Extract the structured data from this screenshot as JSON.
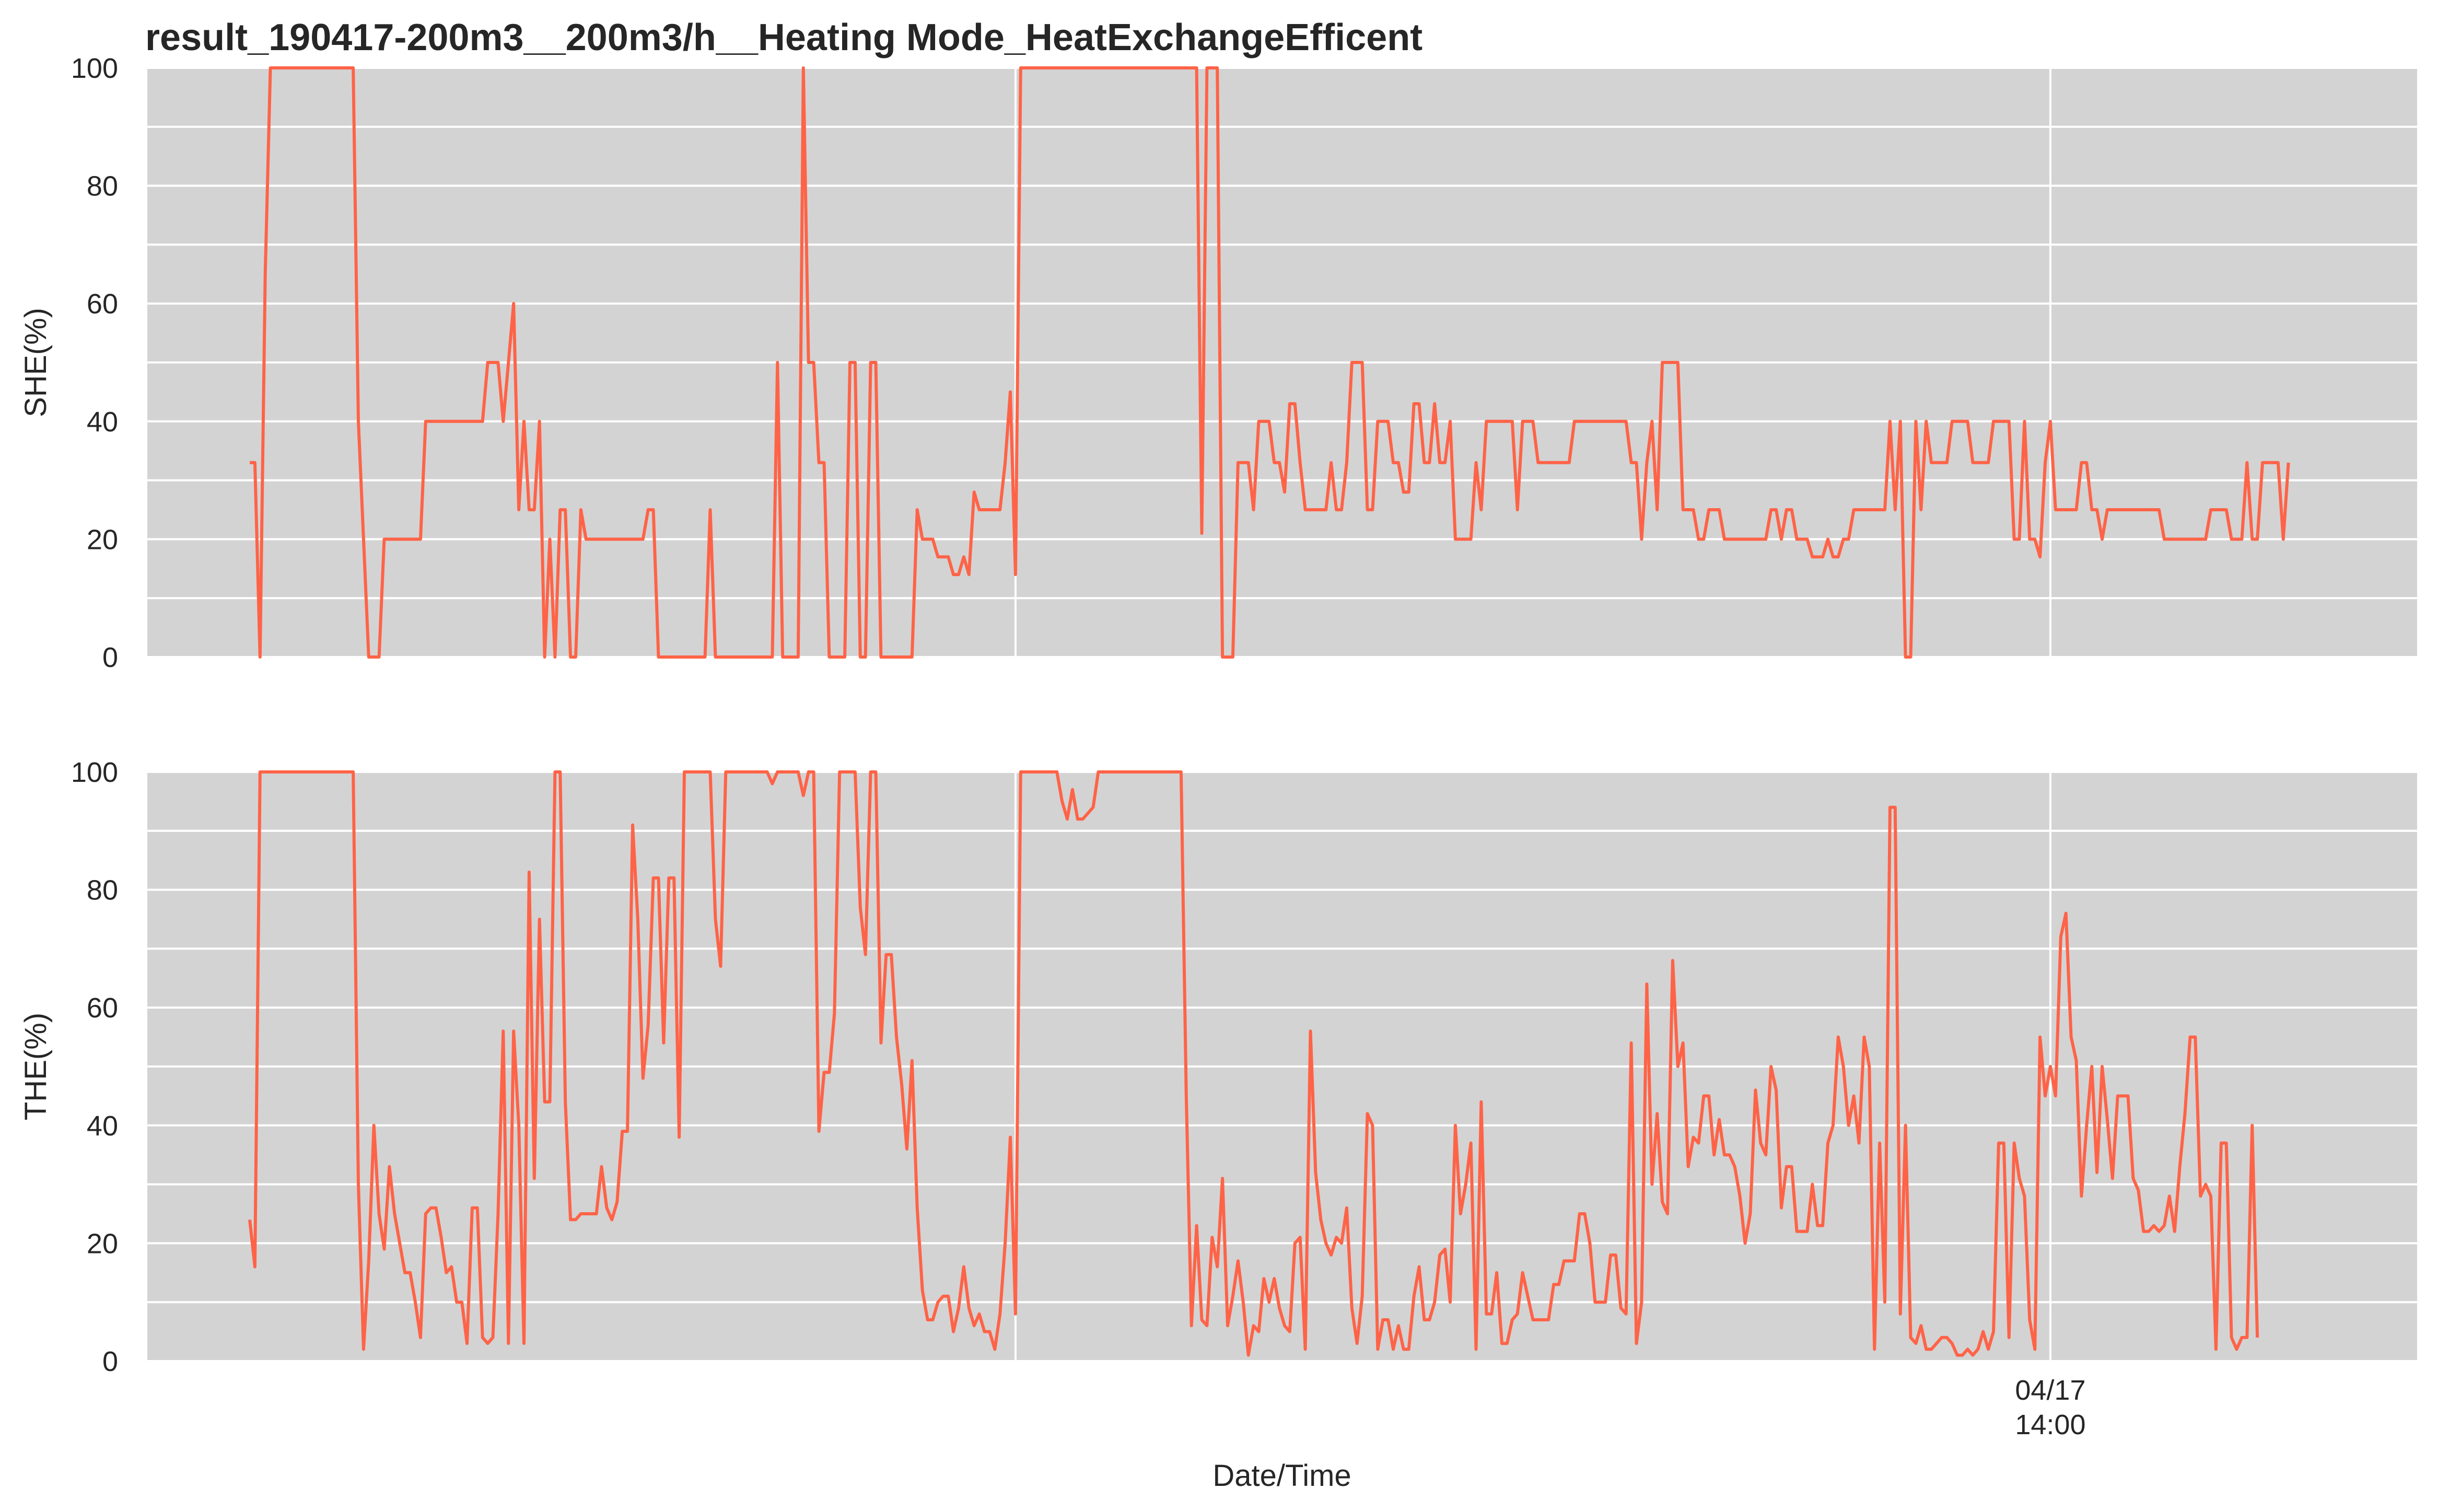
{
  "chart_data": [
    {
      "type": "line",
      "title": "result_190417-200m3__200m3/h__Heating Mode_HeatExchangeEfficent",
      "ylabel": "SHE(%)",
      "xlabel": "",
      "ylim": [
        0,
        100
      ],
      "yticks": [
        0,
        20,
        40,
        60,
        80,
        100
      ],
      "grid": true,
      "line_color": "#FF6347",
      "background": "#D3D3D3",
      "x_index_range": [
        0,
        400
      ],
      "series": [
        {
          "values": [
            33,
            33,
            0,
            65,
            100,
            100,
            100,
            100,
            100,
            100,
            100,
            100,
            100,
            100,
            100,
            100,
            100,
            100,
            100,
            100,
            100,
            40,
            20,
            0,
            0,
            0,
            20,
            20,
            20,
            20,
            20,
            20,
            20,
            20,
            40,
            40,
            40,
            40,
            40,
            40,
            40,
            40,
            40,
            40,
            40,
            40,
            50,
            50,
            50,
            40,
            50,
            60,
            25,
            40,
            25,
            25,
            40,
            0,
            20,
            0,
            25,
            25,
            0,
            0,
            25,
            20,
            20,
            20,
            20,
            20,
            20,
            20,
            20,
            20,
            20,
            20,
            20,
            25,
            25,
            0,
            0,
            0,
            0,
            0,
            0,
            0,
            0,
            0,
            0,
            25,
            0,
            0,
            0,
            0,
            0,
            0,
            0,
            0,
            0,
            0,
            0,
            0,
            50,
            0,
            0,
            0,
            0,
            100,
            50,
            50,
            33,
            33,
            0,
            0,
            0,
            0,
            50,
            50,
            0,
            0,
            50,
            50,
            0,
            0,
            0,
            0,
            0,
            0,
            0,
            25,
            20,
            20,
            20,
            17,
            17,
            17,
            14,
            14,
            17,
            14,
            28,
            25,
            25,
            25,
            25,
            25,
            33,
            45,
            14,
            100,
            100,
            100,
            100,
            100,
            100,
            100,
            100,
            100,
            100,
            100,
            100,
            100,
            100,
            100,
            100,
            100,
            100,
            100,
            100,
            100,
            100,
            100,
            100,
            100,
            100,
            100,
            100,
            100,
            100,
            100,
            100,
            100,
            100,
            100,
            21,
            100,
            100,
            100,
            0,
            0,
            0,
            33,
            33,
            33,
            25,
            40,
            40,
            40,
            33,
            33,
            28,
            43,
            43,
            33,
            25,
            25,
            25,
            25,
            25,
            33,
            25,
            25,
            33,
            50,
            50,
            50,
            25,
            25,
            40,
            40,
            40,
            33,
            33,
            28,
            28,
            43,
            43,
            33,
            33,
            43,
            33,
            33,
            40,
            20,
            20,
            20,
            20,
            33,
            25,
            40,
            40,
            40,
            40,
            40,
            40,
            25,
            40,
            40,
            40,
            33,
            33,
            33,
            33,
            33,
            33,
            33,
            40,
            40,
            40,
            40,
            40,
            40,
            40,
            40,
            40,
            40,
            40,
            33,
            33,
            20,
            33,
            40,
            25,
            50,
            50,
            50,
            50,
            25,
            25,
            25,
            20,
            20,
            25,
            25,
            25,
            20,
            20,
            20,
            20,
            20,
            20,
            20,
            20,
            20,
            25,
            25,
            20,
            25,
            25,
            20,
            20,
            20,
            17,
            17,
            17,
            20,
            17,
            17,
            20,
            20,
            25,
            25,
            25,
            25,
            25,
            25,
            25,
            40,
            25,
            40,
            0,
            0,
            40,
            25,
            40,
            33,
            33,
            33,
            33,
            40,
            40,
            40,
            40,
            33,
            33,
            33,
            33,
            40,
            40,
            40,
            40,
            20,
            20,
            40,
            20,
            20,
            17,
            33,
            40,
            25,
            25,
            25,
            25,
            25,
            33,
            33,
            25,
            25,
            20,
            25,
            25,
            25,
            25,
            25,
            25,
            25,
            25,
            25,
            25,
            25,
            20,
            20,
            20,
            20,
            20,
            20,
            20,
            20,
            20,
            25,
            25,
            25,
            25,
            20,
            20,
            20,
            33,
            20,
            20,
            33,
            33,
            33,
            33,
            20,
            33
          ]
        }
      ]
    },
    {
      "type": "line",
      "title": "",
      "ylabel": "THE(%)",
      "xlabel": "Date/Time",
      "ylim": [
        0,
        100
      ],
      "yticks": [
        0,
        20,
        40,
        60,
        80,
        100
      ],
      "grid": true,
      "line_color": "#FF6347",
      "background": "#D3D3D3",
      "x_index_range": [
        0,
        400
      ],
      "xtick_labels": [
        {
          "index": 348,
          "line1": "04/17",
          "line2": "14:00"
        }
      ],
      "series": [
        {
          "values": [
            24,
            16,
            100,
            100,
            100,
            100,
            100,
            100,
            100,
            100,
            100,
            100,
            100,
            100,
            100,
            100,
            100,
            100,
            100,
            100,
            100,
            30,
            2,
            17,
            40,
            25,
            19,
            33,
            25,
            20,
            15,
            15,
            10,
            4,
            25,
            26,
            26,
            21,
            15,
            16,
            10,
            10,
            3,
            26,
            26,
            4,
            3,
            4,
            25,
            56,
            3,
            56,
            40,
            3,
            83,
            31,
            75,
            44,
            44,
            100,
            100,
            44,
            24,
            24,
            25,
            25,
            25,
            25,
            33,
            26,
            24,
            27,
            39,
            39,
            91,
            75,
            48,
            57,
            82,
            82,
            54,
            82,
            82,
            38,
            100,
            100,
            100,
            100,
            100,
            100,
            75,
            67,
            100,
            100,
            100,
            100,
            100,
            100,
            100,
            100,
            100,
            98,
            100,
            100,
            100,
            100,
            100,
            96,
            100,
            100,
            39,
            49,
            49,
            59,
            100,
            100,
            100,
            100,
            77,
            69,
            100,
            100,
            54,
            69,
            69,
            55,
            47,
            36,
            51,
            26,
            12,
            7,
            7,
            10,
            11,
            11,
            5,
            9,
            16,
            9,
            6,
            8,
            5,
            5,
            2,
            8,
            20,
            38,
            8,
            100,
            100,
            100,
            100,
            100,
            100,
            100,
            100,
            95,
            92,
            97,
            92,
            92,
            93,
            94,
            100,
            100,
            100,
            100,
            100,
            100,
            100,
            100,
            100,
            100,
            100,
            100,
            100,
            100,
            100,
            100,
            100,
            45,
            6,
            23,
            7,
            6,
            21,
            16,
            31,
            6,
            11,
            17,
            10,
            1,
            6,
            5,
            14,
            10,
            14,
            9,
            6,
            5,
            20,
            21,
            2,
            56,
            32,
            24,
            20,
            18,
            21,
            20,
            26,
            9,
            3,
            11,
            42,
            40,
            2,
            7,
            7,
            2,
            6,
            2,
            2,
            11,
            16,
            7,
            7,
            10,
            18,
            19,
            10,
            40,
            25,
            30,
            37,
            2,
            44,
            8,
            8,
            15,
            3,
            3,
            7,
            8,
            15,
            11,
            7,
            7,
            7,
            7,
            13,
            13,
            17,
            17,
            17,
            25,
            25,
            20,
            10,
            10,
            10,
            18,
            18,
            9,
            8,
            54,
            3,
            10,
            64,
            30,
            42,
            27,
            25,
            68,
            50,
            54,
            33,
            38,
            37,
            45,
            45,
            35,
            41,
            35,
            35,
            33,
            28,
            20,
            25,
            46,
            37,
            35,
            50,
            46,
            26,
            33,
            33,
            22,
            22,
            22,
            30,
            23,
            23,
            37,
            40,
            55,
            50,
            40,
            45,
            37,
            55,
            50,
            2,
            37,
            10,
            94,
            94,
            8,
            40,
            4,
            3,
            6,
            2,
            2,
            3,
            4,
            4,
            3,
            1,
            1,
            2,
            1,
            2,
            5,
            2,
            5,
            37,
            37,
            4,
            37,
            31,
            28,
            7,
            2,
            55,
            45,
            50,
            45,
            72,
            76,
            55,
            51,
            28,
            40,
            50,
            32,
            50,
            41,
            31,
            45,
            45,
            45,
            31,
            29,
            22,
            22,
            23,
            22,
            23,
            28,
            22,
            33,
            42,
            55,
            55,
            28,
            30,
            28,
            2,
            37,
            37,
            4,
            2,
            4,
            4,
            40,
            4
          ]
        }
      ]
    }
  ]
}
